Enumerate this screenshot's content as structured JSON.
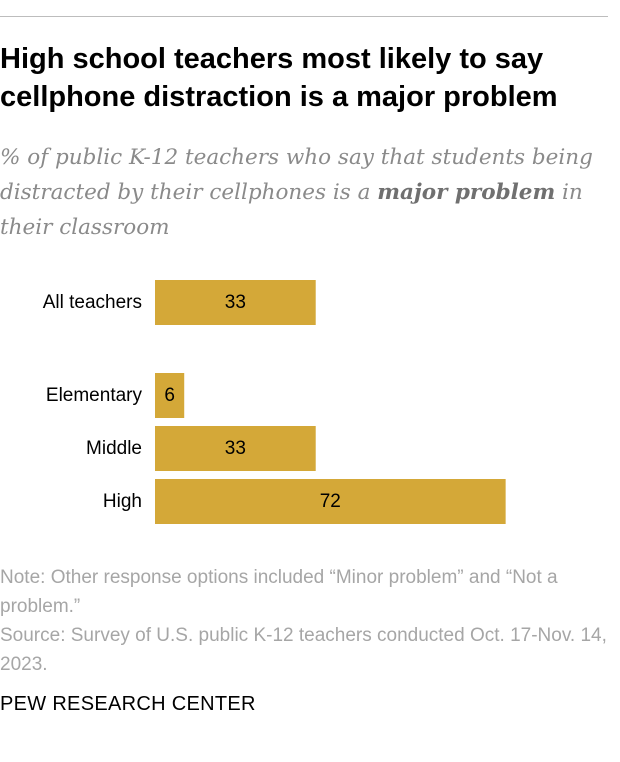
{
  "title": "High school teachers most likely to say cellphone distraction is a major problem",
  "subtitle": {
    "before": "% of public K-12 teachers who say that students being distracted by their cellphones is a ",
    "emphasis": "major problem",
    "after": " in their classroom"
  },
  "note": "Note: Other response options included “Minor problem” and “Not a problem.”",
  "source": "Source: Survey of U.S. public K-12 teachers conducted Oct. 17-Nov. 14, 2023.",
  "brand": "PEW RESEARCH CENTER",
  "colors": {
    "bar": "#D4A838",
    "label": "#000000"
  },
  "chart_data": {
    "type": "bar",
    "orientation": "horizontal",
    "categories": [
      "All teachers",
      "Elementary",
      "Middle",
      "High"
    ],
    "values": [
      33,
      6,
      33,
      72
    ],
    "group_break_after": 0,
    "xlim": [
      0,
      100
    ],
    "grid": false,
    "legend": "none"
  }
}
